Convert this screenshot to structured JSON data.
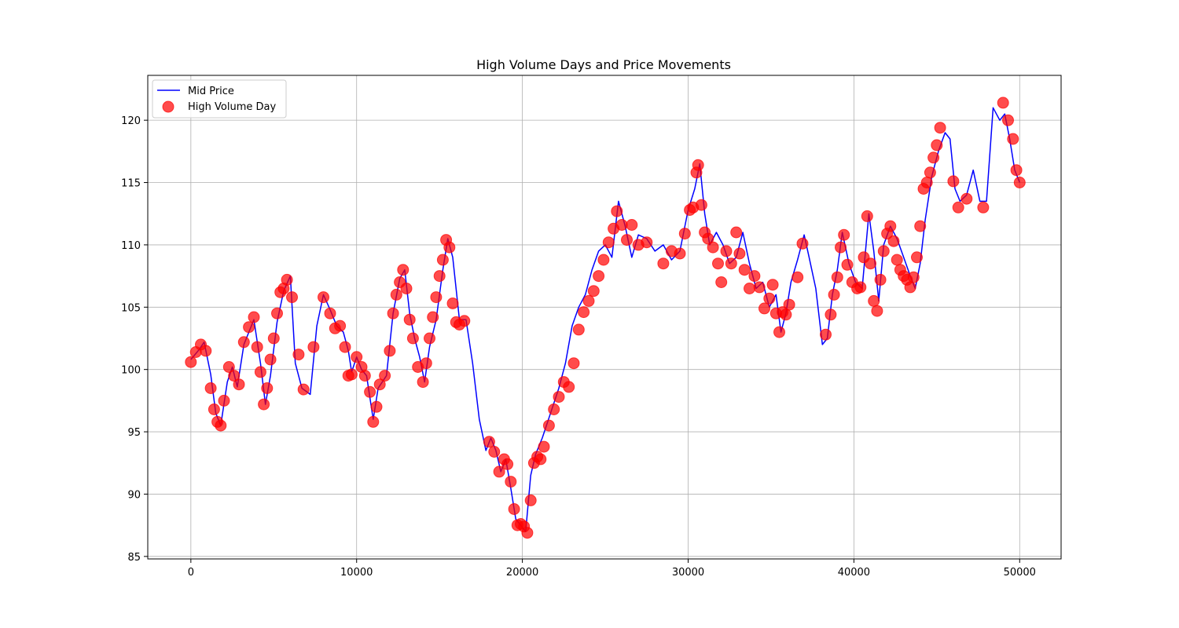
{
  "chart_data": {
    "type": "line",
    "title": "High Volume Days and Price Movements",
    "xlabel": "",
    "ylabel": "",
    "xlim": [
      -2600,
      52500
    ],
    "ylim": [
      84.8,
      123.6
    ],
    "x_ticks": [
      0,
      10000,
      20000,
      30000,
      40000,
      50000
    ],
    "x_tick_labels": [
      "0",
      "10000",
      "20000",
      "30000",
      "40000",
      "50000"
    ],
    "y_ticks": [
      85,
      90,
      95,
      100,
      105,
      110,
      115,
      120
    ],
    "y_tick_labels": [
      "85",
      "90",
      "95",
      "100",
      "105",
      "110",
      "115",
      "120"
    ],
    "grid": true,
    "legend_position": "upper-left",
    "series": [
      {
        "name": "Mid Price",
        "kind": "line",
        "color": "#0000ff",
        "x": [
          0,
          500,
          800,
          1200,
          1500,
          1800,
          2200,
          2500,
          2800,
          3200,
          3500,
          3800,
          4200,
          4500,
          4800,
          5200,
          5600,
          6000,
          6300,
          6700,
          7200,
          7600,
          8000,
          8400,
          8800,
          9200,
          9500,
          9700,
          10000,
          10300,
          10600,
          11000,
          11300,
          11800,
          12200,
          12600,
          12900,
          13200,
          13500,
          13800,
          14100,
          14400,
          14800,
          15200,
          15500,
          15800,
          16200,
          16600,
          17000,
          17400,
          17800,
          18100,
          18400,
          18700,
          19000,
          19300,
          19600,
          19900,
          20200,
          20500,
          20800,
          21200,
          21700,
          22200,
          22600,
          23000,
          23400,
          23800,
          24200,
          24600,
          25000,
          25400,
          25800,
          26200,
          26600,
          27000,
          27500,
          28000,
          28500,
          29000,
          29500,
          30000,
          30400,
          30700,
          31000,
          31300,
          31700,
          32100,
          32500,
          32900,
          33300,
          33700,
          34100,
          34500,
          34900,
          35300,
          35600,
          35900,
          36200,
          36600,
          37000,
          37300,
          37700,
          38100,
          38400,
          38700,
          39000,
          39300,
          39700,
          40100,
          40500,
          40900,
          41200,
          41500,
          41800,
          42200,
          42600,
          43000,
          43400,
          43700,
          44000,
          44300,
          44700,
          45100,
          45500,
          45800,
          46100,
          46400,
          46800,
          47200,
          47600,
          48000,
          48400,
          48800,
          49100,
          49400,
          49700,
          50000
        ],
        "y": [
          100.8,
          101.6,
          102.2,
          99.6,
          96.5,
          95.5,
          99.0,
          100.2,
          98.6,
          102.0,
          103.0,
          104.0,
          100.5,
          97.2,
          99.5,
          103.8,
          106.3,
          107.5,
          100.5,
          98.5,
          98.0,
          103.5,
          106.0,
          104.8,
          103.5,
          103.0,
          101.5,
          99.8,
          101.0,
          100.0,
          99.5,
          96.0,
          98.5,
          99.5,
          104.5,
          107.3,
          108.0,
          104.5,
          102.5,
          101.0,
          99.0,
          101.8,
          104.0,
          108.0,
          110.5,
          109.0,
          104.0,
          104.0,
          100.5,
          96.0,
          93.5,
          94.5,
          93.5,
          91.8,
          92.8,
          90.5,
          88.0,
          87.5,
          87.0,
          91.5,
          93.2,
          94.5,
          96.5,
          98.5,
          100.5,
          103.5,
          105.0,
          106.0,
          108.0,
          109.5,
          110.0,
          109.0,
          113.5,
          111.5,
          109.0,
          110.8,
          110.5,
          109.5,
          110.0,
          108.8,
          109.5,
          112.8,
          114.5,
          116.5,
          112.5,
          110.0,
          111.0,
          110.0,
          108.5,
          109.0,
          111.0,
          108.5,
          106.5,
          107.0,
          105.0,
          106.0,
          103.0,
          104.5,
          107.0,
          108.8,
          110.8,
          109.0,
          106.5,
          102.0,
          102.5,
          106.0,
          108.0,
          111.0,
          108.5,
          107.0,
          106.5,
          112.5,
          109.5,
          105.5,
          110.0,
          111.5,
          110.5,
          109.0,
          107.5,
          106.5,
          108.5,
          112.0,
          115.5,
          117.5,
          119.0,
          118.5,
          114.5,
          113.5,
          114.0,
          116.0,
          113.5,
          113.5,
          121.0,
          120.0,
          120.5,
          118.5,
          116.0,
          115.0
        ]
      },
      {
        "name": "High Volume Day",
        "kind": "scatter",
        "color": "#ff0000",
        "x": [
          0,
          300,
          600,
          900,
          1200,
          1400,
          1600,
          1800,
          2000,
          2300,
          2600,
          2900,
          3200,
          3500,
          3800,
          4000,
          4200,
          4400,
          4600,
          4800,
          5000,
          5200,
          5400,
          5600,
          5800,
          6100,
          6500,
          6800,
          7400,
          8000,
          8400,
          8700,
          9000,
          9300,
          9500,
          9700,
          10000,
          10300,
          10500,
          10800,
          11000,
          11200,
          11400,
          11700,
          12000,
          12200,
          12400,
          12600,
          12800,
          13000,
          13200,
          13400,
          13700,
          14000,
          14200,
          14400,
          14600,
          14800,
          15000,
          15200,
          15400,
          15600,
          15800,
          16000,
          16200,
          16500,
          18000,
          18300,
          18600,
          18900,
          19100,
          19300,
          19500,
          19700,
          19900,
          20100,
          20300,
          20500,
          20700,
          20900,
          21100,
          21300,
          21600,
          21900,
          22200,
          22500,
          22800,
          23100,
          23400,
          23700,
          24000,
          24300,
          24600,
          24900,
          25200,
          25500,
          25700,
          26000,
          26300,
          26600,
          27000,
          27500,
          28500,
          29000,
          29500,
          29800,
          30100,
          30300,
          30500,
          30600,
          30800,
          31000,
          31200,
          31500,
          31800,
          32000,
          32300,
          32600,
          32900,
          33100,
          33400,
          33700,
          34000,
          34300,
          34600,
          34900,
          35100,
          35300,
          35500,
          35700,
          35900,
          36100,
          36600,
          36900,
          38300,
          38600,
          38800,
          39000,
          39200,
          39400,
          39600,
          39900,
          40200,
          40400,
          40600,
          40800,
          41000,
          41200,
          41400,
          41600,
          41800,
          42000,
          42200,
          42400,
          42600,
          42800,
          43000,
          43200,
          43400,
          43600,
          43800,
          44000,
          44200,
          44400,
          44600,
          44800,
          45000,
          45200,
          46000,
          46300,
          46800,
          47800,
          49000,
          49300,
          49600,
          49800,
          50000
        ],
        "y": [
          100.6,
          101.4,
          102.0,
          101.5,
          98.5,
          96.8,
          95.8,
          95.5,
          97.5,
          100.2,
          99.5,
          98.8,
          102.2,
          103.4,
          104.2,
          101.8,
          99.8,
          97.2,
          98.5,
          100.8,
          102.5,
          104.5,
          106.2,
          106.5,
          107.2,
          105.8,
          101.2,
          98.4,
          101.8,
          105.8,
          104.5,
          103.3,
          103.5,
          101.8,
          99.5,
          99.6,
          101.0,
          100.2,
          99.5,
          98.2,
          95.8,
          97.0,
          98.8,
          99.5,
          101.5,
          104.5,
          106.0,
          107.0,
          108.0,
          106.5,
          104.0,
          102.5,
          100.2,
          99.0,
          100.5,
          102.5,
          104.2,
          105.8,
          107.5,
          108.8,
          110.4,
          109.8,
          105.3,
          103.8,
          103.6,
          103.9,
          94.2,
          93.4,
          91.8,
          92.8,
          92.4,
          91.0,
          88.8,
          87.5,
          87.6,
          87.4,
          86.9,
          89.5,
          92.5,
          93.0,
          92.8,
          93.8,
          95.5,
          96.8,
          97.8,
          99.0,
          98.6,
          100.5,
          103.2,
          104.6,
          105.5,
          106.3,
          107.5,
          108.8,
          110.2,
          111.3,
          112.7,
          111.6,
          110.4,
          111.6,
          110.0,
          110.2,
          108.5,
          109.5,
          109.3,
          110.9,
          112.8,
          113.0,
          115.8,
          116.4,
          113.2,
          111.0,
          110.5,
          109.8,
          108.5,
          107.0,
          109.5,
          108.5,
          111.0,
          109.3,
          108.0,
          106.5,
          107.5,
          106.6,
          104.9,
          105.7,
          106.8,
          104.5,
          103.0,
          104.6,
          104.4,
          105.2,
          107.4,
          110.1,
          102.8,
          104.4,
          106.0,
          107.4,
          109.8,
          110.8,
          108.4,
          107.0,
          106.5,
          106.6,
          109.0,
          112.3,
          108.5,
          105.5,
          104.7,
          107.2,
          109.5,
          110.9,
          111.5,
          110.3,
          108.8,
          108.0,
          107.5,
          107.2,
          106.6,
          107.4,
          109.0,
          111.5,
          114.5,
          115.0,
          115.8,
          117.0,
          118.0,
          119.4,
          115.1,
          113.0,
          113.7,
          113.0,
          121.4,
          120.0,
          118.5,
          116.0,
          115.0
        ]
      }
    ]
  }
}
